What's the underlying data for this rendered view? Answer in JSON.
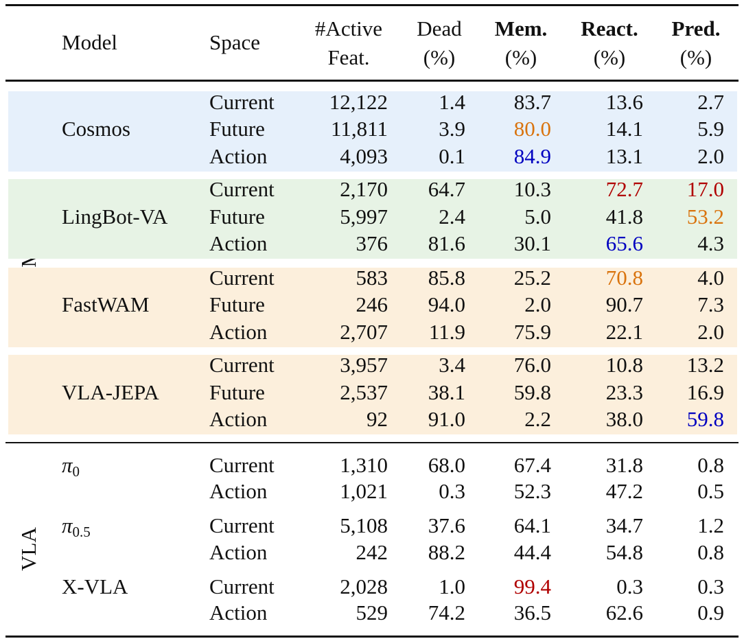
{
  "header": [
    {
      "lines": [
        "Model"
      ]
    },
    {
      "lines": [
        "Space"
      ]
    },
    {
      "lines": [
        "#Active",
        "Feat."
      ]
    },
    {
      "lines": [
        "Dead",
        "(%)"
      ]
    },
    {
      "lines": [
        "Mem.",
        "(%)"
      ],
      "bold": true
    },
    {
      "lines": [
        "React.",
        "(%)"
      ],
      "bold": true
    },
    {
      "lines": [
        "Pred.",
        "(%)"
      ],
      "bold": true
    }
  ],
  "groups": [
    {
      "label": "WAM",
      "models": [
        {
          "name": "Cosmos",
          "background": "#e6f0fb",
          "rows": [
            {
              "space": "Current",
              "values": [
                "12,122",
                "1.4",
                "83.7",
                "13.6",
                "2.7"
              ]
            },
            {
              "space": "Future",
              "values": [
                "11,811",
                "3.9",
                "80.0",
                "14.1",
                "5.9"
              ],
              "highlight": {
                "2": "#d9730d"
              }
            },
            {
              "space": "Action",
              "values": [
                "4,093",
                "0.1",
                "84.9",
                "13.1",
                "2.0"
              ],
              "highlight": {
                "2": "#0000c0"
              }
            }
          ]
        },
        {
          "name": "LingBot-VA",
          "background": "#e7f3e5",
          "rows": [
            {
              "space": "Current",
              "values": [
                "2,170",
                "64.7",
                "10.3",
                "72.7",
                "17.0"
              ],
              "highlight": {
                "3": "#b00000",
                "4": "#b00000"
              }
            },
            {
              "space": "Future",
              "values": [
                "5,997",
                "2.4",
                "5.0",
                "41.8",
                "53.2"
              ],
              "highlight": {
                "4": "#d9730d"
              }
            },
            {
              "space": "Action",
              "values": [
                "376",
                "81.6",
                "30.1",
                "65.6",
                "4.3"
              ],
              "highlight": {
                "3": "#0000c0"
              }
            }
          ]
        },
        {
          "name": "FastWAM",
          "background": "#fcefdc",
          "rows": [
            {
              "space": "Current",
              "values": [
                "583",
                "85.8",
                "25.2",
                "70.8",
                "4.0"
              ],
              "highlight": {
                "3": "#d9730d"
              }
            },
            {
              "space": "Future",
              "values": [
                "246",
                "94.0",
                "2.0",
                "90.7",
                "7.3"
              ]
            },
            {
              "space": "Action",
              "values": [
                "2,707",
                "11.9",
                "75.9",
                "22.1",
                "2.0"
              ]
            }
          ]
        },
        {
          "name": "VLA-JEPA",
          "background": "#fcefdc",
          "rows": [
            {
              "space": "Current",
              "values": [
                "3,957",
                "3.4",
                "76.0",
                "10.8",
                "13.2"
              ]
            },
            {
              "space": "Future",
              "values": [
                "2,537",
                "38.1",
                "59.8",
                "23.3",
                "16.9"
              ]
            },
            {
              "space": "Action",
              "values": [
                "92",
                "91.0",
                "2.2",
                "38.0",
                "59.8"
              ],
              "highlight": {
                "4": "#0000c0"
              }
            }
          ]
        }
      ]
    },
    {
      "label": "VLA",
      "models": [
        {
          "name": "π",
          "sub": "0",
          "rows": [
            {
              "space": "Current",
              "values": [
                "1,310",
                "68.0",
                "67.4",
                "31.8",
                "0.8"
              ]
            },
            {
              "space": "Action",
              "values": [
                "1,021",
                "0.3",
                "52.3",
                "47.2",
                "0.5"
              ]
            }
          ]
        },
        {
          "name": "π",
          "sub": "0.5",
          "rows": [
            {
              "space": "Current",
              "values": [
                "5,108",
                "37.6",
                "64.1",
                "34.7",
                "1.2"
              ]
            },
            {
              "space": "Action",
              "values": [
                "242",
                "88.2",
                "44.4",
                "54.8",
                "0.8"
              ]
            }
          ]
        },
        {
          "name": "X-VLA",
          "rows": [
            {
              "space": "Current",
              "values": [
                "2,028",
                "1.0",
                "99.4",
                "0.3",
                "0.3"
              ],
              "highlight": {
                "2": "#b00000"
              }
            },
            {
              "space": "Action",
              "values": [
                "529",
                "74.2",
                "36.5",
                "62.6",
                "0.9"
              ]
            }
          ]
        }
      ]
    }
  ]
}
